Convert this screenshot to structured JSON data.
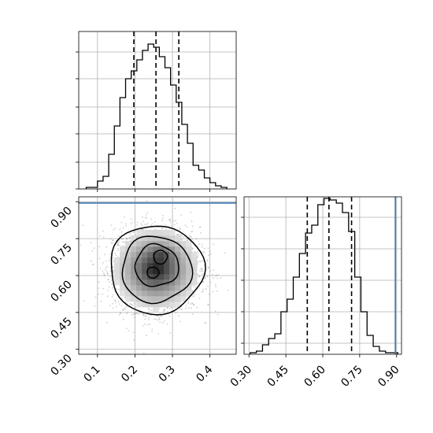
{
  "chart_data": [
    {
      "panel": "top-left",
      "type": "histogram",
      "xlim": [
        0.05,
        0.47
      ],
      "ylim": [
        0,
        1
      ],
      "x_ticks": [
        0.1,
        0.2,
        0.3,
        0.4
      ],
      "y_ticks": [
        0.0,
        0.17,
        0.35,
        0.52,
        0.7,
        0.87
      ],
      "y_tick_labels_shown": false,
      "grid": true,
      "bins": [
        {
          "x0": 0.07,
          "x1": 0.085,
          "h": 0.01
        },
        {
          "x0": 0.085,
          "x1": 0.1,
          "h": 0.01
        },
        {
          "x0": 0.1,
          "x1": 0.115,
          "h": 0.05
        },
        {
          "x0": 0.115,
          "x1": 0.13,
          "h": 0.08
        },
        {
          "x0": 0.13,
          "x1": 0.145,
          "h": 0.22
        },
        {
          "x0": 0.145,
          "x1": 0.16,
          "h": 0.4
        },
        {
          "x0": 0.16,
          "x1": 0.175,
          "h": 0.58
        },
        {
          "x0": 0.175,
          "x1": 0.19,
          "h": 0.7
        },
        {
          "x0": 0.19,
          "x1": 0.205,
          "h": 0.75
        },
        {
          "x0": 0.205,
          "x1": 0.22,
          "h": 0.82
        },
        {
          "x0": 0.22,
          "x1": 0.235,
          "h": 0.88
        },
        {
          "x0": 0.235,
          "x1": 0.25,
          "h": 0.92
        },
        {
          "x0": 0.25,
          "x1": 0.265,
          "h": 0.9
        },
        {
          "x0": 0.265,
          "x1": 0.28,
          "h": 0.84
        },
        {
          "x0": 0.28,
          "x1": 0.295,
          "h": 0.77
        },
        {
          "x0": 0.295,
          "x1": 0.31,
          "h": 0.66
        },
        {
          "x0": 0.31,
          "x1": 0.325,
          "h": 0.55
        },
        {
          "x0": 0.325,
          "x1": 0.34,
          "h": 0.41
        },
        {
          "x0": 0.34,
          "x1": 0.355,
          "h": 0.29
        },
        {
          "x0": 0.355,
          "x1": 0.37,
          "h": 0.15
        },
        {
          "x0": 0.37,
          "x1": 0.385,
          "h": 0.12
        },
        {
          "x0": 0.385,
          "x1": 0.4,
          "h": 0.07
        },
        {
          "x0": 0.4,
          "x1": 0.415,
          "h": 0.04
        },
        {
          "x0": 0.415,
          "x1": 0.43,
          "h": 0.02
        },
        {
          "x0": 0.43,
          "x1": 0.445,
          "h": 0.01
        }
      ],
      "quantile_lines": [
        0.197,
        0.256,
        0.317
      ]
    },
    {
      "panel": "bottom-left",
      "type": "scatter-density-contour",
      "xlim": [
        0.05,
        0.47
      ],
      "ylim": [
        0.28,
        0.92
      ],
      "x_ticks": [
        "0.1",
        "0.2",
        "0.3",
        "0.4"
      ],
      "y_ticks": [
        "0.30",
        "0.45",
        "0.60",
        "0.75",
        "0.90"
      ],
      "grid": true,
      "center": {
        "x": 0.257,
        "y": 0.625
      },
      "truth_line_y": 0.895,
      "density_peaks": [
        {
          "x": 0.265,
          "y": 0.675,
          "level": 0.95
        },
        {
          "x": 0.25,
          "y": 0.615,
          "level": 0.85
        }
      ]
    },
    {
      "panel": "bottom-right",
      "type": "histogram",
      "xlim": [
        0.28,
        0.92
      ],
      "ylim": [
        0,
        1
      ],
      "x_ticks": [
        "0.30",
        "0.45",
        "0.60",
        "0.75",
        "0.90"
      ],
      "y_ticks": [
        0.07,
        0.27,
        0.47,
        0.67,
        0.87
      ],
      "y_tick_labels_shown": false,
      "grid": true,
      "bins": [
        {
          "x0": 0.305,
          "x1": 0.33,
          "h": 0.01
        },
        {
          "x0": 0.33,
          "x1": 0.355,
          "h": 0.02
        },
        {
          "x0": 0.355,
          "x1": 0.38,
          "h": 0.06
        },
        {
          "x0": 0.38,
          "x1": 0.405,
          "h": 0.1
        },
        {
          "x0": 0.405,
          "x1": 0.43,
          "h": 0.13
        },
        {
          "x0": 0.43,
          "x1": 0.455,
          "h": 0.27
        },
        {
          "x0": 0.455,
          "x1": 0.48,
          "h": 0.35
        },
        {
          "x0": 0.48,
          "x1": 0.505,
          "h": 0.49
        },
        {
          "x0": 0.505,
          "x1": 0.53,
          "h": 0.64
        },
        {
          "x0": 0.53,
          "x1": 0.555,
          "h": 0.77
        },
        {
          "x0": 0.555,
          "x1": 0.58,
          "h": 0.82
        },
        {
          "x0": 0.58,
          "x1": 0.605,
          "h": 0.95
        },
        {
          "x0": 0.605,
          "x1": 0.63,
          "h": 0.99
        },
        {
          "x0": 0.63,
          "x1": 0.655,
          "h": 0.98
        },
        {
          "x0": 0.655,
          "x1": 0.68,
          "h": 0.96
        },
        {
          "x0": 0.68,
          "x1": 0.705,
          "h": 0.9
        },
        {
          "x0": 0.705,
          "x1": 0.73,
          "h": 0.78
        },
        {
          "x0": 0.73,
          "x1": 0.755,
          "h": 0.49
        },
        {
          "x0": 0.755,
          "x1": 0.78,
          "h": 0.27
        },
        {
          "x0": 0.78,
          "x1": 0.805,
          "h": 0.12
        },
        {
          "x0": 0.805,
          "x1": 0.83,
          "h": 0.05
        },
        {
          "x0": 0.83,
          "x1": 0.855,
          "h": 0.02
        },
        {
          "x0": 0.855,
          "x1": 0.88,
          "h": 0.01
        },
        {
          "x0": 0.88,
          "x1": 0.905,
          "h": 0.01
        }
      ],
      "quantile_lines": [
        0.537,
        0.625,
        0.717
      ],
      "truth_line_x": 0.895
    }
  ],
  "colors": {
    "axis": "#000000",
    "grid": "#b0b0b0",
    "truth": "#4a7fb5",
    "scatter": "#777777",
    "contour": "#000000"
  }
}
